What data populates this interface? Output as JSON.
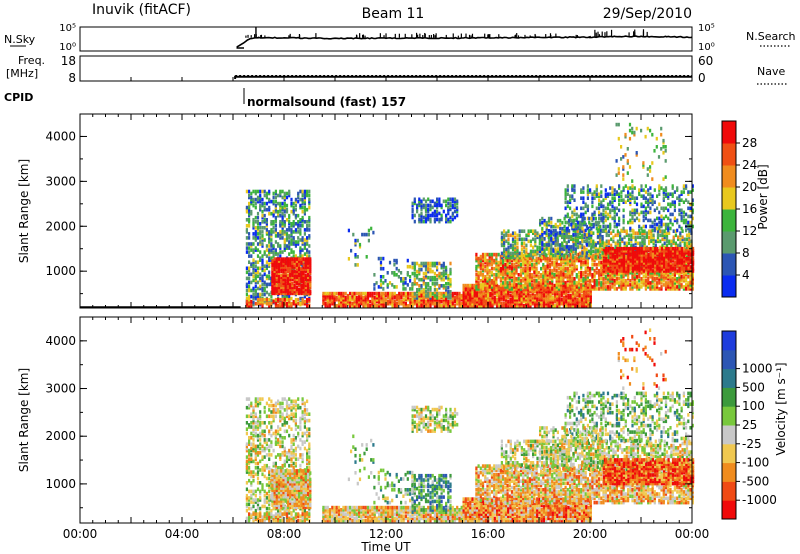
{
  "header": {
    "station": "Inuvik (fitACF)",
    "beam": "Beam 11",
    "date": "29/Sep/2010",
    "nsky_label": "N.Sky",
    "nsearch_label": "N.Search",
    "freq_label_line1": "Freq.",
    "freq_label_line2": "[MHz]",
    "nave_label": "Nave",
    "cpid_label": "CPID",
    "cpid_text": "normalsound (fast) 157"
  },
  "colors": {
    "power": [
      "#0a2cf0",
      "#2c56b4",
      "#5a9a6e",
      "#3cb43c",
      "#e8c81e",
      "#f08c1e",
      "#f05014",
      "#f00a0a"
    ],
    "velocity": [
      "#f00a0a",
      "#f04a14",
      "#f08c1e",
      "#f0c850",
      "#c8c8c8",
      "#78c83c",
      "#3c9a3c",
      "#2c7a8c",
      "#2c56b4",
      "#1e3cdc"
    ]
  },
  "chart_data": [
    {
      "type": "line",
      "panel": "N.Sky / N.Search",
      "left_ticks": [
        "10^5",
        "10^0"
      ],
      "right_ticks": [
        "10^5",
        "10^0"
      ],
      "x": [
        "06:10",
        "06:40",
        "07:00",
        "08:00",
        "10:00",
        "12:00",
        "14:00",
        "16:00",
        "18:00",
        "20:00",
        "21:00",
        "22:00",
        "23:00",
        "24:00"
      ],
      "series": [
        {
          "values_log10": [
            0.4,
            2.8,
            3.0,
            3.0,
            2.8,
            2.9,
            2.9,
            3.0,
            3.1,
            3.2,
            3.4,
            3.4,
            3.3,
            3.2
          ]
        }
      ]
    },
    {
      "type": "line",
      "panel": "Freq. / Nave",
      "left_ticks": [
        "18",
        "8"
      ],
      "right_ticks": [
        "60",
        "0"
      ],
      "x": [
        "06:05",
        "24:00"
      ],
      "series": [
        {
          "values": [
            9.3,
            9.3
          ]
        },
        {
          "values": [
            12,
            12
          ]
        }
      ]
    },
    {
      "type": "heatmap",
      "panel": "Power",
      "ylabel": "Slant Range [km]",
      "yticks": [
        "1000",
        "2000",
        "3000",
        "4000"
      ],
      "ylim": [
        180,
        4500
      ],
      "colorbar_label": "Power [dB]",
      "colorbar_ticks": [
        "4",
        "8",
        "12",
        "16",
        "20",
        "24",
        "28"
      ],
      "colorbar_range": [
        0,
        32
      ]
    },
    {
      "type": "heatmap",
      "panel": "Velocity",
      "ylabel": "Slant Range [km]",
      "yticks": [
        "1000",
        "2000",
        "3000",
        "4000"
      ],
      "ylim": [
        180,
        4500
      ],
      "colorbar_label": "Velocity [m s⁻¹]",
      "colorbar_ticks": [
        "-1000",
        "-500",
        "-100",
        "-25",
        "25",
        "100",
        "500",
        "1000"
      ]
    }
  ],
  "xaxis": {
    "ticks": [
      "00:00",
      "04:00",
      "08:00",
      "12:00",
      "16:00",
      "20:00",
      "00:00"
    ],
    "label": "Time UT"
  }
}
